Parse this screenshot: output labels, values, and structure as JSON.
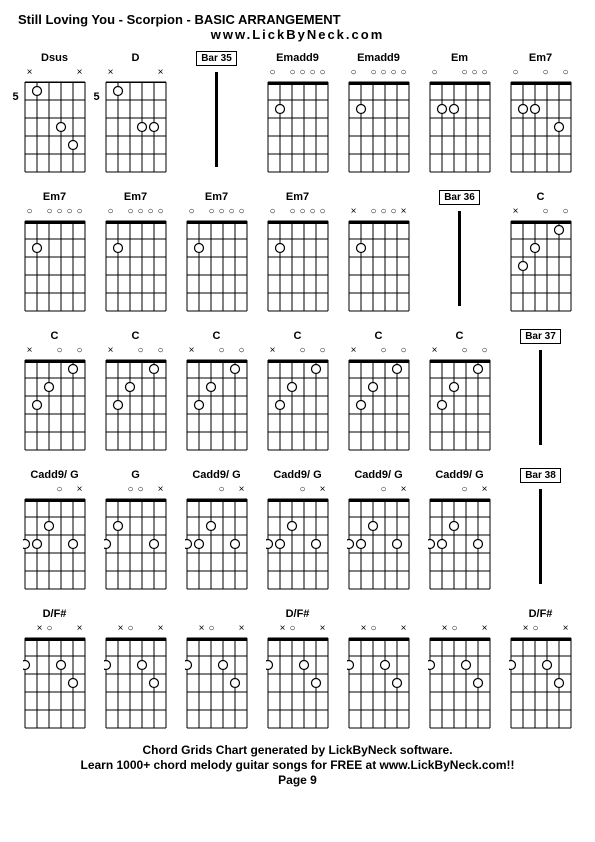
{
  "title": "Still Loving You - Scorpion - BASIC ARRANGEMENT",
  "subtitle": "www.LickByNeck.com",
  "footer1": "Chord Grids Chart generated by LickByNeck software.",
  "footer2": "Learn 1000+ chord melody guitar songs for FREE at www.LickByNeck.com!!",
  "footer3": "Page 9",
  "chart": {
    "strings": 6,
    "frets": 5,
    "diagram_width": 60,
    "diagram_height": 90,
    "colors": {
      "line": "#000000",
      "dot_fill": "#ffffff",
      "dot_stroke": "#000000",
      "bg": "#ffffff"
    }
  },
  "cells": [
    [
      {
        "type": "chord",
        "label": "Dsus",
        "fretLabel": "5",
        "indicators": [
          "x",
          "",
          "",
          "",
          "",
          "x"
        ],
        "dots": [
          {
            "s": 2,
            "f": 1
          },
          {
            "s": 4,
            "f": 3
          },
          {
            "s": 5,
            "f": 4
          }
        ]
      },
      {
        "type": "chord",
        "label": "D",
        "fretLabel": "5",
        "indicators": [
          "x",
          "",
          "",
          "",
          "",
          "x"
        ],
        "dots": [
          {
            "s": 2,
            "f": 1
          },
          {
            "s": 4,
            "f": 3
          },
          {
            "s": 5,
            "f": 3
          }
        ]
      },
      {
        "type": "bar",
        "label": "Bar 35"
      },
      {
        "type": "chord",
        "label": "Emadd9",
        "indicators": [
          "o",
          "",
          "o",
          "o",
          "o",
          "o"
        ],
        "dots": [
          {
            "s": 2,
            "f": 2
          }
        ]
      },
      {
        "type": "chord",
        "label": "Emadd9",
        "indicators": [
          "o",
          "",
          "o",
          "o",
          "o",
          "o"
        ],
        "dots": [
          {
            "s": 2,
            "f": 2
          }
        ]
      },
      {
        "type": "chord",
        "label": "Em",
        "indicators": [
          "o",
          "",
          "",
          "o",
          "o",
          "o"
        ],
        "dots": [
          {
            "s": 2,
            "f": 2
          },
          {
            "s": 3,
            "f": 2
          }
        ]
      },
      {
        "type": "chord",
        "label": "Em7",
        "indicators": [
          "o",
          "",
          "",
          "o",
          "",
          "o"
        ],
        "dots": [
          {
            "s": 2,
            "f": 2
          },
          {
            "s": 3,
            "f": 2
          },
          {
            "s": 5,
            "f": 3
          }
        ]
      }
    ],
    [
      {
        "type": "chord",
        "label": "Em7",
        "indicators": [
          "o",
          "",
          "o",
          "o",
          "o",
          "o"
        ],
        "dots": [
          {
            "s": 2,
            "f": 2
          }
        ]
      },
      {
        "type": "chord",
        "label": "Em7",
        "indicators": [
          "o",
          "",
          "o",
          "o",
          "o",
          "o"
        ],
        "dots": [
          {
            "s": 2,
            "f": 2
          }
        ]
      },
      {
        "type": "chord",
        "label": "Em7",
        "indicators": [
          "o",
          "",
          "o",
          "o",
          "o",
          "o"
        ],
        "dots": [
          {
            "s": 2,
            "f": 2
          }
        ]
      },
      {
        "type": "chord",
        "label": "Em7",
        "indicators": [
          "o",
          "",
          "o",
          "o",
          "o",
          "o"
        ],
        "dots": [
          {
            "s": 2,
            "f": 2
          }
        ]
      },
      {
        "type": "chord",
        "label": "",
        "indicators": [
          "x",
          "",
          "o",
          "o",
          "o",
          "x"
        ],
        "dots": [
          {
            "s": 2,
            "f": 2
          }
        ]
      },
      {
        "type": "bar",
        "label": "Bar 36"
      },
      {
        "type": "chord",
        "label": "C",
        "indicators": [
          "x",
          "",
          "",
          "o",
          "",
          "o"
        ],
        "dots": [
          {
            "s": 2,
            "f": 3
          },
          {
            "s": 3,
            "f": 2
          },
          {
            "s": 5,
            "f": 1
          }
        ]
      }
    ],
    [
      {
        "type": "chord",
        "label": "C",
        "indicators": [
          "x",
          "",
          "",
          "o",
          "",
          "o"
        ],
        "dots": [
          {
            "s": 2,
            "f": 3
          },
          {
            "s": 3,
            "f": 2
          },
          {
            "s": 5,
            "f": 1
          }
        ]
      },
      {
        "type": "chord",
        "label": "C",
        "indicators": [
          "x",
          "",
          "",
          "o",
          "",
          "o"
        ],
        "dots": [
          {
            "s": 2,
            "f": 3
          },
          {
            "s": 3,
            "f": 2
          },
          {
            "s": 5,
            "f": 1
          }
        ]
      },
      {
        "type": "chord",
        "label": "C",
        "indicators": [
          "x",
          "",
          "",
          "o",
          "",
          "o"
        ],
        "dots": [
          {
            "s": 2,
            "f": 3
          },
          {
            "s": 3,
            "f": 2
          },
          {
            "s": 5,
            "f": 1
          }
        ]
      },
      {
        "type": "chord",
        "label": "C",
        "indicators": [
          "x",
          "",
          "",
          "o",
          "",
          "o"
        ],
        "dots": [
          {
            "s": 2,
            "f": 3
          },
          {
            "s": 3,
            "f": 2
          },
          {
            "s": 5,
            "f": 1
          }
        ]
      },
      {
        "type": "chord",
        "label": "C",
        "indicators": [
          "x",
          "",
          "",
          "o",
          "",
          "o"
        ],
        "dots": [
          {
            "s": 2,
            "f": 3
          },
          {
            "s": 3,
            "f": 2
          },
          {
            "s": 5,
            "f": 1
          }
        ]
      },
      {
        "type": "chord",
        "label": "C",
        "indicators": [
          "x",
          "",
          "",
          "o",
          "",
          "o"
        ],
        "dots": [
          {
            "s": 2,
            "f": 3
          },
          {
            "s": 3,
            "f": 2
          },
          {
            "s": 5,
            "f": 1
          }
        ]
      },
      {
        "type": "bar",
        "label": "Bar 37"
      }
    ],
    [
      {
        "type": "chord",
        "label": "Cadd9/ G",
        "indicators": [
          "",
          "",
          "",
          "o",
          "",
          "x"
        ],
        "dots": [
          {
            "s": 1,
            "f": 3
          },
          {
            "s": 2,
            "f": 3
          },
          {
            "s": 3,
            "f": 2
          },
          {
            "s": 5,
            "f": 3
          }
        ]
      },
      {
        "type": "chord",
        "label": "G",
        "indicators": [
          "",
          "",
          "o",
          "o",
          "",
          "x"
        ],
        "dots": [
          {
            "s": 1,
            "f": 3
          },
          {
            "s": 2,
            "f": 2
          },
          {
            "s": 5,
            "f": 3
          }
        ]
      },
      {
        "type": "chord",
        "label": "Cadd9/ G",
        "indicators": [
          "",
          "",
          "",
          "o",
          "",
          "x"
        ],
        "dots": [
          {
            "s": 1,
            "f": 3
          },
          {
            "s": 2,
            "f": 3
          },
          {
            "s": 3,
            "f": 2
          },
          {
            "s": 5,
            "f": 3
          }
        ]
      },
      {
        "type": "chord",
        "label": "Cadd9/ G",
        "indicators": [
          "",
          "",
          "",
          "o",
          "",
          "x"
        ],
        "dots": [
          {
            "s": 1,
            "f": 3
          },
          {
            "s": 2,
            "f": 3
          },
          {
            "s": 3,
            "f": 2
          },
          {
            "s": 5,
            "f": 3
          }
        ]
      },
      {
        "type": "chord",
        "label": "Cadd9/ G",
        "indicators": [
          "",
          "",
          "",
          "o",
          "",
          "x"
        ],
        "dots": [
          {
            "s": 1,
            "f": 3
          },
          {
            "s": 2,
            "f": 3
          },
          {
            "s": 3,
            "f": 2
          },
          {
            "s": 5,
            "f": 3
          }
        ]
      },
      {
        "type": "chord",
        "label": "Cadd9/ G",
        "indicators": [
          "",
          "",
          "",
          "o",
          "",
          "x"
        ],
        "dots": [
          {
            "s": 1,
            "f": 3
          },
          {
            "s": 2,
            "f": 3
          },
          {
            "s": 3,
            "f": 2
          },
          {
            "s": 5,
            "f": 3
          }
        ]
      },
      {
        "type": "bar",
        "label": "Bar 38"
      }
    ],
    [
      {
        "type": "chord",
        "label": "D/F#",
        "indicators": [
          "",
          "x",
          "o",
          "",
          "",
          "x"
        ],
        "dots": [
          {
            "s": 1,
            "f": 2
          },
          {
            "s": 4,
            "f": 2
          },
          {
            "s": 5,
            "f": 3
          }
        ]
      },
      {
        "type": "chord",
        "label": "",
        "indicators": [
          "",
          "x",
          "o",
          "",
          "",
          "x"
        ],
        "dots": [
          {
            "s": 1,
            "f": 2
          },
          {
            "s": 4,
            "f": 2
          },
          {
            "s": 5,
            "f": 3
          }
        ]
      },
      {
        "type": "chord",
        "label": "",
        "indicators": [
          "",
          "x",
          "o",
          "",
          "",
          "x"
        ],
        "dots": [
          {
            "s": 1,
            "f": 2
          },
          {
            "s": 4,
            "f": 2
          },
          {
            "s": 5,
            "f": 3
          }
        ]
      },
      {
        "type": "chord",
        "label": "D/F#",
        "indicators": [
          "",
          "x",
          "o",
          "",
          "",
          "x"
        ],
        "dots": [
          {
            "s": 1,
            "f": 2
          },
          {
            "s": 4,
            "f": 2
          },
          {
            "s": 5,
            "f": 3
          }
        ]
      },
      {
        "type": "chord",
        "label": "",
        "indicators": [
          "",
          "x",
          "o",
          "",
          "",
          "x"
        ],
        "dots": [
          {
            "s": 1,
            "f": 2
          },
          {
            "s": 4,
            "f": 2
          },
          {
            "s": 5,
            "f": 3
          }
        ]
      },
      {
        "type": "chord",
        "label": "",
        "indicators": [
          "",
          "x",
          "o",
          "",
          "",
          "x"
        ],
        "dots": [
          {
            "s": 1,
            "f": 2
          },
          {
            "s": 4,
            "f": 2
          },
          {
            "s": 5,
            "f": 3
          }
        ]
      },
      {
        "type": "chord",
        "label": "D/F#",
        "indicators": [
          "",
          "x",
          "o",
          "",
          "",
          "x"
        ],
        "dots": [
          {
            "s": 1,
            "f": 2
          },
          {
            "s": 4,
            "f": 2
          },
          {
            "s": 5,
            "f": 3
          }
        ]
      }
    ]
  ]
}
